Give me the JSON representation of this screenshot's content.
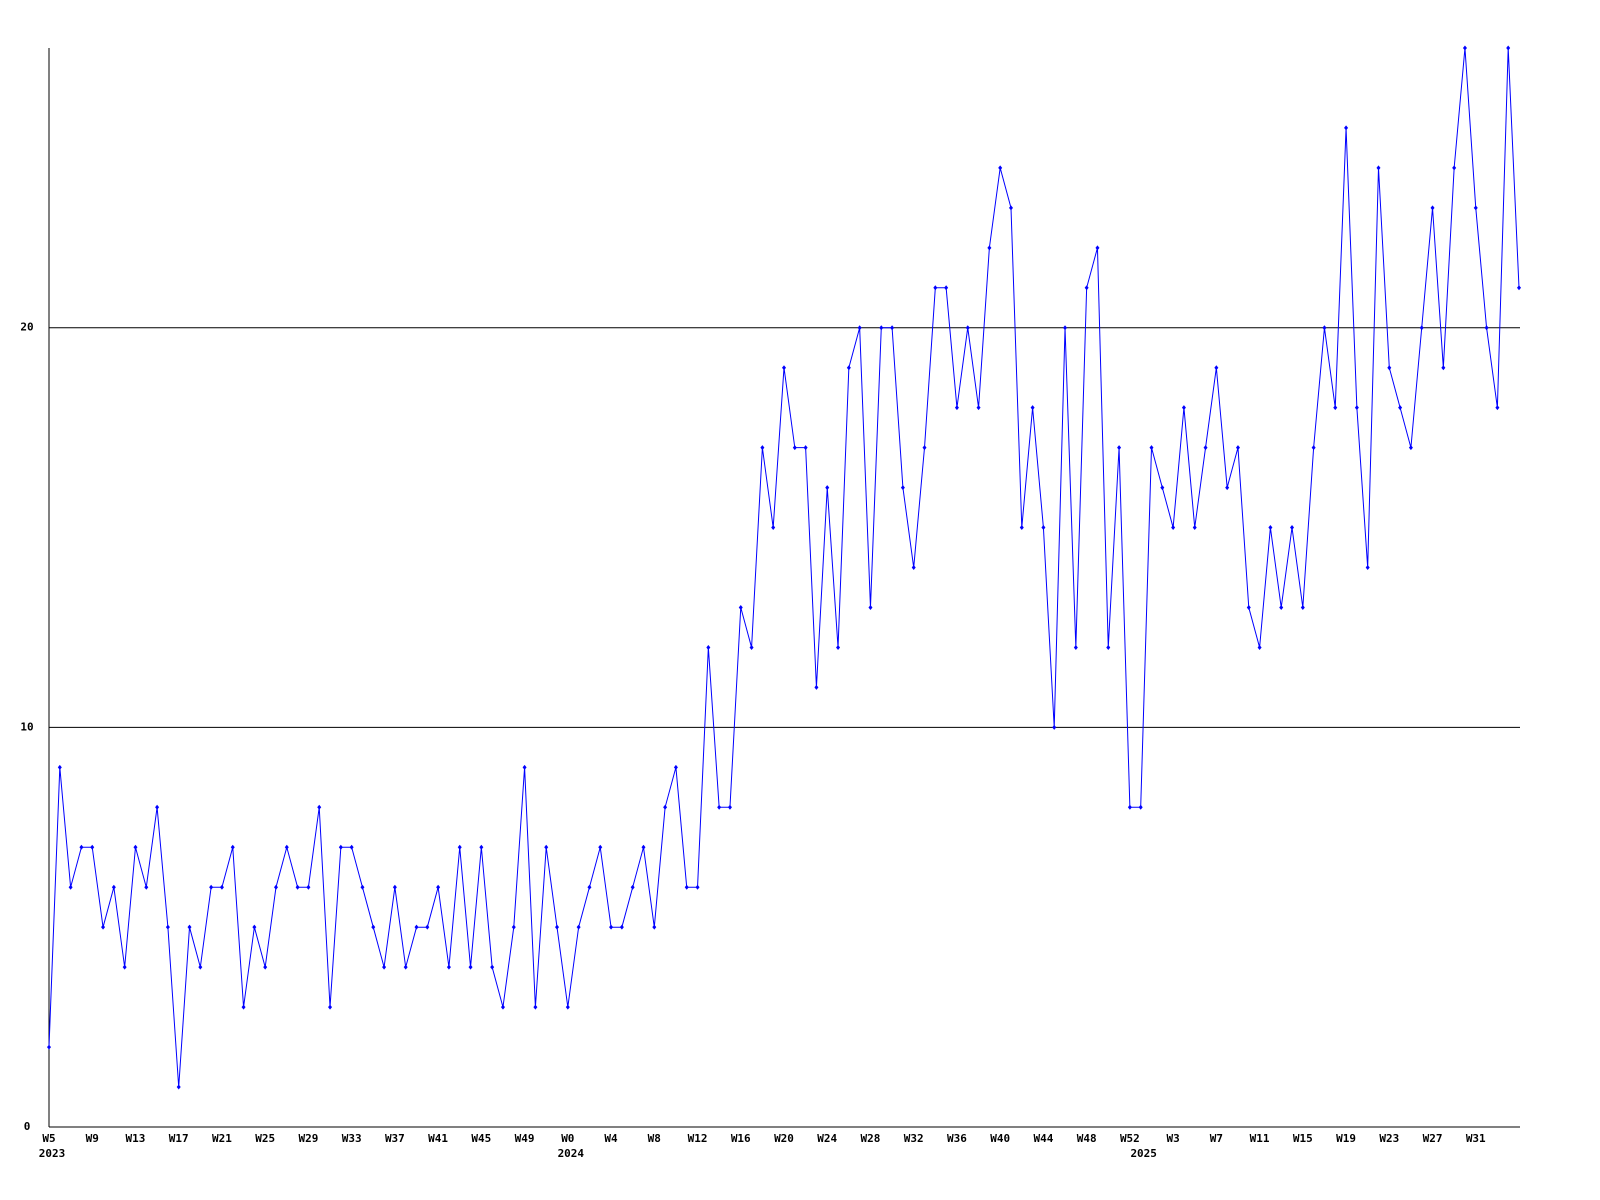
{
  "chart_data": {
    "type": "line",
    "categories": [
      "W5",
      null,
      null,
      null,
      "W9",
      null,
      null,
      null,
      "W13",
      null,
      null,
      null,
      "W17",
      null,
      null,
      null,
      "W21",
      null,
      null,
      null,
      "W25",
      null,
      null,
      null,
      "W29",
      null,
      null,
      null,
      "W33",
      null,
      null,
      null,
      "W37",
      null,
      null,
      null,
      "W41",
      null,
      null,
      null,
      "W45",
      null,
      null,
      null,
      "W49",
      null,
      null,
      null,
      "W0",
      null,
      null,
      null,
      "W4",
      null,
      null,
      null,
      "W8",
      null,
      null,
      null,
      "W12",
      null,
      null,
      null,
      "W16",
      null,
      null,
      null,
      "W20",
      null,
      null,
      null,
      "W24",
      null,
      null,
      null,
      "W28",
      null,
      null,
      null,
      "W32",
      null,
      null,
      null,
      "W36",
      null,
      null,
      null,
      "W40",
      null,
      null,
      null,
      "W44",
      null,
      null,
      null,
      "W48",
      null,
      null,
      null,
      "W52",
      null,
      null,
      null,
      "W3",
      null,
      null,
      null,
      "W7",
      null,
      null,
      null,
      "W11",
      null,
      null,
      null,
      "W15",
      null,
      null,
      null,
      "W19",
      null,
      null,
      null,
      "W23",
      null,
      null,
      null,
      "W27",
      null,
      null,
      null,
      "W31",
      null,
      null,
      null,
      null
    ],
    "category_years": [
      "2023",
      null,
      null,
      null,
      null,
      null,
      null,
      null,
      null,
      null,
      null,
      null,
      null,
      null,
      null,
      null,
      null,
      null,
      null,
      null,
      null,
      null,
      null,
      null,
      null,
      null,
      null,
      null,
      null,
      null,
      null,
      null,
      null,
      null,
      null,
      null,
      null,
      null,
      null,
      null,
      null,
      null,
      null,
      null,
      null,
      null,
      null,
      null,
      "2024",
      null,
      null,
      null,
      null,
      null,
      null,
      null,
      null,
      null,
      null,
      null,
      null,
      null,
      null,
      null,
      null,
      null,
      null,
      null,
      null,
      null,
      null,
      null,
      null,
      null,
      null,
      null,
      null,
      null,
      null,
      null,
      null,
      null,
      null,
      null,
      null,
      null,
      null,
      null,
      null,
      null,
      null,
      null,
      null,
      null,
      null,
      null,
      null,
      null,
      null,
      null,
      null,
      "2025",
      null,
      null,
      null,
      null,
      null,
      null,
      null,
      null,
      null,
      null,
      null,
      null,
      null,
      null,
      null,
      null,
      null,
      null,
      null,
      null,
      null,
      null,
      null,
      null,
      null,
      null,
      null,
      null,
      null,
      null,
      null,
      null,
      null,
      null,
      null
    ],
    "series": [
      {
        "color": "#0000ff",
        "values": [
          2,
          9,
          6,
          7,
          7,
          5,
          6,
          4,
          7,
          6,
          8,
          5,
          1,
          5,
          4,
          6,
          6,
          7,
          3,
          5,
          4,
          6,
          7,
          6,
          6,
          8,
          3,
          7,
          7,
          6,
          5,
          4,
          6,
          4,
          5,
          5,
          6,
          4,
          7,
          4,
          7,
          4,
          3,
          5,
          9,
          3,
          7,
          5,
          3,
          5,
          6,
          7,
          5,
          5,
          6,
          7,
          5,
          8,
          9,
          6,
          6,
          12,
          8,
          8,
          13,
          12,
          17,
          15,
          19,
          17,
          17,
          11,
          16,
          12,
          19,
          20,
          13,
          20,
          20,
          16,
          14,
          17,
          21,
          21,
          18,
          20,
          18,
          22,
          24,
          23,
          15,
          18,
          15,
          10,
          20,
          12,
          21,
          22,
          12,
          17,
          8,
          8,
          17,
          16,
          15,
          18,
          15,
          17,
          19,
          16,
          17,
          13,
          12,
          15,
          13,
          15,
          13,
          17,
          20,
          18,
          25,
          18,
          14,
          24,
          19,
          18,
          17,
          20,
          23,
          19,
          24,
          27,
          23,
          20,
          18,
          27,
          21
        ]
      }
    ],
    "ylim": [
      0,
      27
    ],
    "yticks": [
      0,
      10,
      20
    ],
    "grid": true,
    "grid_color": "#000000",
    "markers": true
  }
}
